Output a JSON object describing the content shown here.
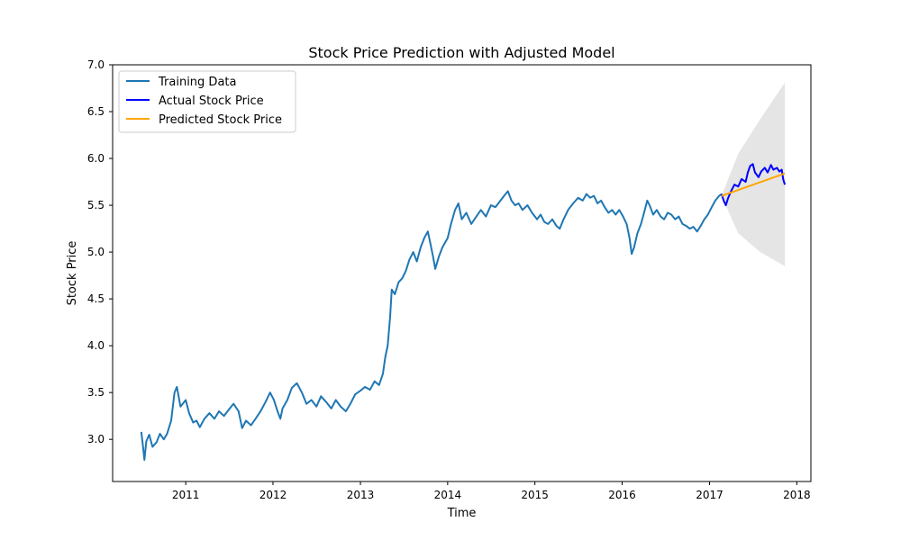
{
  "chart_data": {
    "type": "line",
    "title": "Stock Price Prediction with Adjusted Model",
    "xlabel": "Time",
    "ylabel": "Stock Price",
    "xlim": [
      "2010-03-01",
      "2018-03-01"
    ],
    "ylim": [
      2.55,
      7.0
    ],
    "x_ticks": [
      "2011",
      "2012",
      "2013",
      "2014",
      "2015",
      "2016",
      "2017",
      "2018"
    ],
    "y_ticks": [
      "3.0",
      "3.5",
      "4.0",
      "4.5",
      "5.0",
      "5.5",
      "6.0",
      "6.5",
      "7.0"
    ],
    "grid": false,
    "legend_position": "top-left",
    "series": [
      {
        "name": "Training Data",
        "color": "#1f77b4",
        "points": [
          [
            "2010-06-29",
            3.08
          ],
          [
            "2010-07-05",
            2.95
          ],
          [
            "2010-07-12",
            2.78
          ],
          [
            "2010-07-20",
            2.98
          ],
          [
            "2010-08-01",
            3.05
          ],
          [
            "2010-08-15",
            2.92
          ],
          [
            "2010-09-01",
            2.97
          ],
          [
            "2010-09-15",
            3.06
          ],
          [
            "2010-10-01",
            3.0
          ],
          [
            "2010-10-15",
            3.06
          ],
          [
            "2010-11-01",
            3.2
          ],
          [
            "2010-11-15",
            3.5
          ],
          [
            "2010-11-25",
            3.56
          ],
          [
            "2010-12-10",
            3.35
          ],
          [
            "2011-01-01",
            3.42
          ],
          [
            "2011-01-15",
            3.28
          ],
          [
            "2011-02-01",
            3.18
          ],
          [
            "2011-02-15",
            3.2
          ],
          [
            "2011-03-01",
            3.13
          ],
          [
            "2011-03-20",
            3.22
          ],
          [
            "2011-04-10",
            3.28
          ],
          [
            "2011-05-01",
            3.22
          ],
          [
            "2011-05-20",
            3.3
          ],
          [
            "2011-06-10",
            3.25
          ],
          [
            "2011-07-01",
            3.32
          ],
          [
            "2011-07-20",
            3.38
          ],
          [
            "2011-08-10",
            3.3
          ],
          [
            "2011-08-25",
            3.12
          ],
          [
            "2011-09-10",
            3.2
          ],
          [
            "2011-10-01",
            3.15
          ],
          [
            "2011-10-20",
            3.22
          ],
          [
            "2011-11-10",
            3.3
          ],
          [
            "2011-12-01",
            3.4
          ],
          [
            "2011-12-20",
            3.5
          ],
          [
            "2012-01-05",
            3.42
          ],
          [
            "2012-01-20",
            3.3
          ],
          [
            "2012-02-01",
            3.22
          ],
          [
            "2012-02-10",
            3.33
          ],
          [
            "2012-03-01",
            3.42
          ],
          [
            "2012-03-20",
            3.55
          ],
          [
            "2012-04-10",
            3.6
          ],
          [
            "2012-05-01",
            3.5
          ],
          [
            "2012-05-20",
            3.38
          ],
          [
            "2012-06-10",
            3.42
          ],
          [
            "2012-07-01",
            3.35
          ],
          [
            "2012-07-20",
            3.46
          ],
          [
            "2012-08-10",
            3.4
          ],
          [
            "2012-09-01",
            3.33
          ],
          [
            "2012-09-20",
            3.42
          ],
          [
            "2012-10-10",
            3.35
          ],
          [
            "2012-11-01",
            3.3
          ],
          [
            "2012-11-20",
            3.38
          ],
          [
            "2012-12-10",
            3.48
          ],
          [
            "2013-01-01",
            3.52
          ],
          [
            "2013-01-20",
            3.56
          ],
          [
            "2013-02-10",
            3.53
          ],
          [
            "2013-03-01",
            3.62
          ],
          [
            "2013-03-20",
            3.58
          ],
          [
            "2013-04-05",
            3.7
          ],
          [
            "2013-04-15",
            3.88
          ],
          [
            "2013-04-25",
            4.0
          ],
          [
            "2013-05-05",
            4.3
          ],
          [
            "2013-05-12",
            4.6
          ],
          [
            "2013-05-25",
            4.55
          ],
          [
            "2013-06-10",
            4.68
          ],
          [
            "2013-06-25",
            4.72
          ],
          [
            "2013-07-10",
            4.8
          ],
          [
            "2013-07-25",
            4.92
          ],
          [
            "2013-08-10",
            5.0
          ],
          [
            "2013-08-25",
            4.9
          ],
          [
            "2013-09-10",
            5.05
          ],
          [
            "2013-09-25",
            5.15
          ],
          [
            "2013-10-10",
            5.22
          ],
          [
            "2013-10-20",
            5.1
          ],
          [
            "2013-11-01",
            4.95
          ],
          [
            "2013-11-10",
            4.82
          ],
          [
            "2013-11-25",
            4.95
          ],
          [
            "2013-12-10",
            5.05
          ],
          [
            "2014-01-01",
            5.15
          ],
          [
            "2014-01-15",
            5.3
          ],
          [
            "2014-02-01",
            5.45
          ],
          [
            "2014-02-15",
            5.52
          ],
          [
            "2014-03-01",
            5.35
          ],
          [
            "2014-03-20",
            5.42
          ],
          [
            "2014-04-10",
            5.3
          ],
          [
            "2014-05-01",
            5.38
          ],
          [
            "2014-05-20",
            5.45
          ],
          [
            "2014-06-10",
            5.38
          ],
          [
            "2014-07-01",
            5.5
          ],
          [
            "2014-07-20",
            5.48
          ],
          [
            "2014-08-10",
            5.55
          ],
          [
            "2014-08-25",
            5.6
          ],
          [
            "2014-09-10",
            5.65
          ],
          [
            "2014-09-25",
            5.55
          ],
          [
            "2014-10-10",
            5.5
          ],
          [
            "2014-10-25",
            5.52
          ],
          [
            "2014-11-10",
            5.45
          ],
          [
            "2014-12-01",
            5.5
          ],
          [
            "2014-12-20",
            5.42
          ],
          [
            "2015-01-10",
            5.35
          ],
          [
            "2015-01-25",
            5.4
          ],
          [
            "2015-02-10",
            5.32
          ],
          [
            "2015-02-25",
            5.3
          ],
          [
            "2015-03-15",
            5.35
          ],
          [
            "2015-04-01",
            5.28
          ],
          [
            "2015-04-15",
            5.25
          ],
          [
            "2015-05-01",
            5.35
          ],
          [
            "2015-05-20",
            5.45
          ],
          [
            "2015-06-10",
            5.52
          ],
          [
            "2015-07-01",
            5.58
          ],
          [
            "2015-07-20",
            5.55
          ],
          [
            "2015-08-05",
            5.62
          ],
          [
            "2015-08-20",
            5.58
          ],
          [
            "2015-09-05",
            5.6
          ],
          [
            "2015-09-20",
            5.52
          ],
          [
            "2015-10-05",
            5.55
          ],
          [
            "2015-10-20",
            5.48
          ],
          [
            "2015-11-05",
            5.42
          ],
          [
            "2015-11-20",
            5.45
          ],
          [
            "2015-12-05",
            5.4
          ],
          [
            "2015-12-20",
            5.45
          ],
          [
            "2016-01-05",
            5.38
          ],
          [
            "2016-01-20",
            5.3
          ],
          [
            "2016-02-01",
            5.15
          ],
          [
            "2016-02-10",
            4.98
          ],
          [
            "2016-02-20",
            5.05
          ],
          [
            "2016-03-05",
            5.2
          ],
          [
            "2016-03-20",
            5.3
          ],
          [
            "2016-04-05",
            5.45
          ],
          [
            "2016-04-15",
            5.55
          ],
          [
            "2016-04-25",
            5.5
          ],
          [
            "2016-05-10",
            5.4
          ],
          [
            "2016-05-25",
            5.45
          ],
          [
            "2016-06-10",
            5.38
          ],
          [
            "2016-06-25",
            5.35
          ],
          [
            "2016-07-10",
            5.42
          ],
          [
            "2016-07-25",
            5.4
          ],
          [
            "2016-08-10",
            5.35
          ],
          [
            "2016-08-25",
            5.38
          ],
          [
            "2016-09-10",
            5.3
          ],
          [
            "2016-09-25",
            5.28
          ],
          [
            "2016-10-10",
            5.25
          ],
          [
            "2016-10-25",
            5.27
          ],
          [
            "2016-11-10",
            5.22
          ],
          [
            "2016-11-25",
            5.28
          ],
          [
            "2016-12-10",
            5.35
          ],
          [
            "2016-12-25",
            5.4
          ],
          [
            "2017-01-10",
            5.48
          ],
          [
            "2017-01-25",
            5.55
          ],
          [
            "2017-02-10",
            5.6
          ],
          [
            "2017-02-20",
            5.62
          ]
        ]
      },
      {
        "name": "Actual Stock Price",
        "color": "#0000ff",
        "points": [
          [
            "2017-02-20",
            5.62
          ],
          [
            "2017-03-01",
            5.55
          ],
          [
            "2017-03-10",
            5.5
          ],
          [
            "2017-03-20",
            5.58
          ],
          [
            "2017-04-01",
            5.65
          ],
          [
            "2017-04-15",
            5.72
          ],
          [
            "2017-05-01",
            5.7
          ],
          [
            "2017-05-15",
            5.78
          ],
          [
            "2017-06-01",
            5.75
          ],
          [
            "2017-06-10",
            5.85
          ],
          [
            "2017-06-20",
            5.92
          ],
          [
            "2017-07-01",
            5.94
          ],
          [
            "2017-07-10",
            5.85
          ],
          [
            "2017-07-25",
            5.8
          ],
          [
            "2017-08-05",
            5.86
          ],
          [
            "2017-08-20",
            5.9
          ],
          [
            "2017-09-01",
            5.85
          ],
          [
            "2017-09-15",
            5.93
          ],
          [
            "2017-09-25",
            5.88
          ],
          [
            "2017-10-10",
            5.9
          ],
          [
            "2017-10-20",
            5.86
          ],
          [
            "2017-10-30",
            5.88
          ],
          [
            "2017-11-05",
            5.78
          ],
          [
            "2017-11-12",
            5.72
          ]
        ]
      },
      {
        "name": "Predicted Stock Price",
        "color": "#ffa500",
        "points": [
          [
            "2017-02-20",
            5.6
          ],
          [
            "2017-11-12",
            5.84
          ]
        ]
      }
    ],
    "confidence_band": {
      "color": "#d3d3d3",
      "upper": [
        [
          "2017-02-20",
          5.6
        ],
        [
          "2017-05-01",
          6.05
        ],
        [
          "2017-08-01",
          6.42
        ],
        [
          "2017-11-12",
          6.81
        ]
      ],
      "lower": [
        [
          "2017-02-20",
          5.6
        ],
        [
          "2017-05-01",
          5.2
        ],
        [
          "2017-08-01",
          5.0
        ],
        [
          "2017-11-12",
          4.85
        ]
      ]
    }
  }
}
